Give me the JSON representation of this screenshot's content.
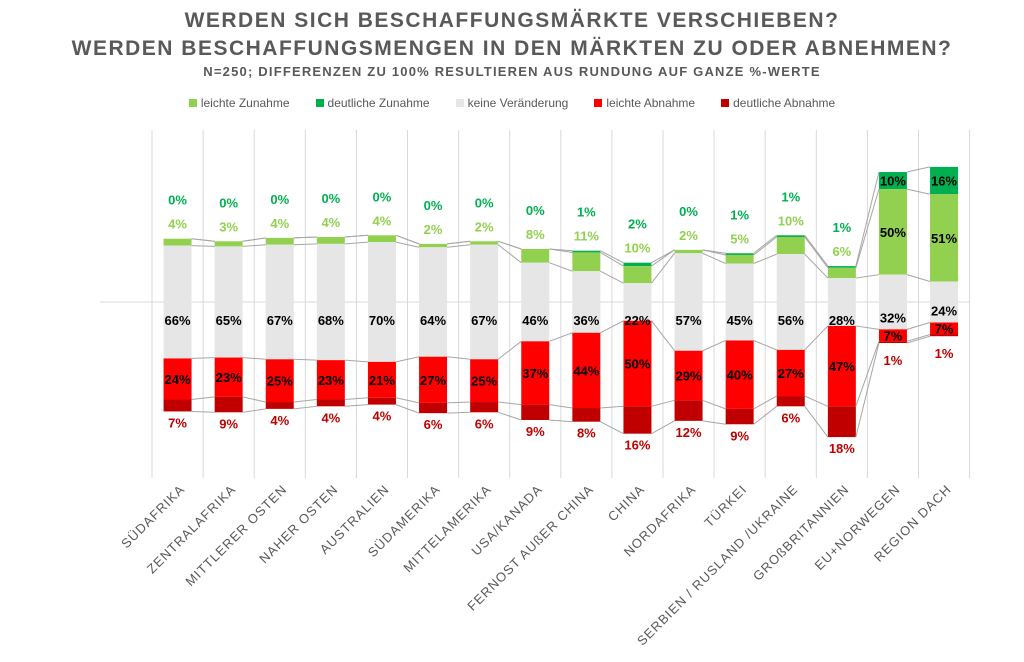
{
  "title_lines": [
    "WERDEN SICH BESCHAFFUNGSMÄRKTE VERSCHIEBEN?",
    "WERDEN BESCHAFFUNGSMENGEN IN DEN MÄRKTEN ZU ODER ABNEHMEN?",
    "N=250; DIFFERENZEN ZU 100% RESULTIEREN AUS RUNDUNG AUF GANZE %-WERTE"
  ],
  "chart_data": {
    "type": "bar",
    "subtype": "diverging-stacked",
    "title": "WERDEN SICH BESCHAFFUNGSMÄRKTE VERSCHIEBEN? WERDEN BESCHAFFUNGSMENGEN IN DEN MÄRKTEN ZU ODER ABNEHMEN?",
    "subtitle": "N=250; DIFFERENZEN ZU 100% RESULTIEREN AUS RUNDUNG AUF GANZE %-WERTE",
    "legend_position": "top",
    "grid": "vertical",
    "unit": "%",
    "categories": [
      "SÜDAFRIKA",
      "ZENTRALAFRIKA",
      "MITTLERER OSTEN",
      "NAHER OSTEN",
      "AUSTRALIEN",
      "SÜDAMERIKA",
      "MITTELAMERIKA",
      "USA/KANADA",
      "FERNOST AUßER CHINA",
      "CHINA",
      "NORDAFRIKA",
      "TÜRKEI",
      "SERBIEN / RUSLAND /UKRAINE",
      "GROßBRITANNIEN",
      "EU+NORWEGEN",
      "REGION DACH"
    ],
    "series": [
      {
        "name": "leichte Zunahme",
        "color": "#92d050",
        "values": [
          4,
          3,
          4,
          4,
          4,
          2,
          2,
          8,
          11,
          10,
          2,
          5,
          10,
          6,
          50,
          51
        ]
      },
      {
        "name": "deutliche Zunahme",
        "color": "#00b050",
        "values": [
          0,
          0,
          0,
          0,
          0,
          0,
          0,
          0,
          1,
          2,
          0,
          1,
          1,
          1,
          10,
          16
        ]
      },
      {
        "name": "keine Veränderung",
        "color": "#e6e6e6",
        "values": [
          66,
          65,
          67,
          68,
          70,
          64,
          67,
          46,
          36,
          22,
          57,
          45,
          56,
          28,
          32,
          24
        ]
      },
      {
        "name": "leichte Abnahme",
        "color": "#ff0000",
        "values": [
          24,
          23,
          25,
          23,
          21,
          27,
          25,
          37,
          44,
          50,
          29,
          40,
          27,
          47,
          7,
          7
        ]
      },
      {
        "name": "deutliche Abnahme",
        "color": "#c00000",
        "values": [
          7,
          9,
          4,
          4,
          4,
          6,
          6,
          9,
          8,
          16,
          12,
          9,
          6,
          18,
          1,
          1
        ]
      }
    ]
  }
}
